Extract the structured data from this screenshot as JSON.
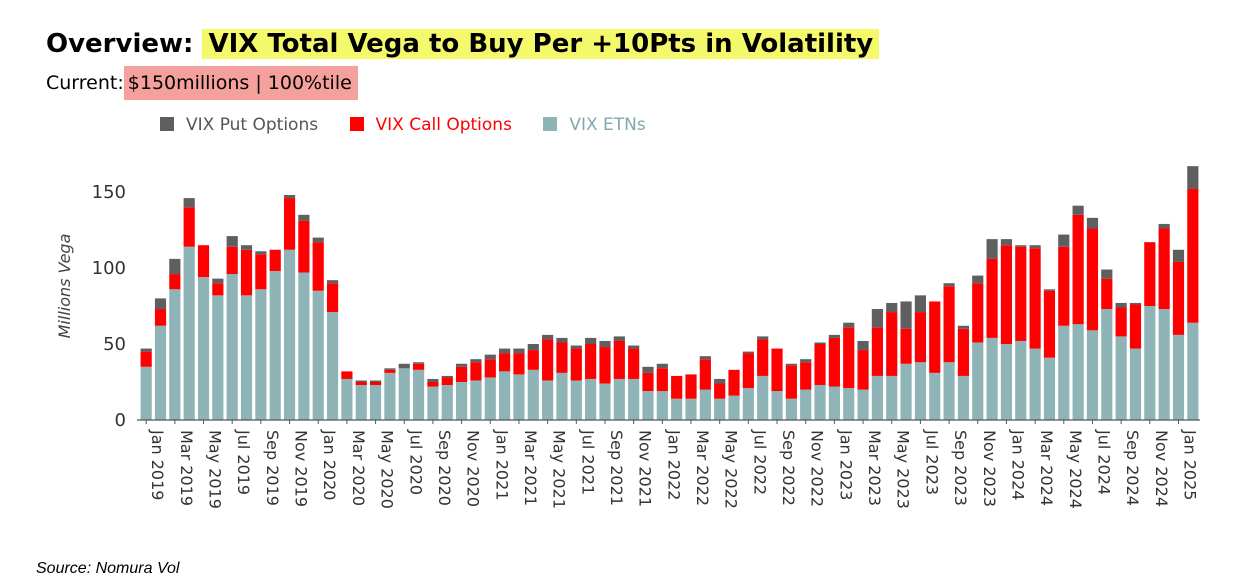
{
  "header": {
    "title_prefix": "Overview:",
    "title_highlight": "VIX Total Vega to Buy Per +10Pts in Volatility",
    "current_label": "Current:",
    "current_value": "$150millions | 100%tile"
  },
  "legend": [
    {
      "label": "VIX Put Options",
      "color": "#5f5f5f",
      "text_color": "#555555"
    },
    {
      "label": "VIX Call Options",
      "color": "#ff0000",
      "text_color": "#ff0000"
    },
    {
      "label": "VIX ETNs",
      "color": "#8fb4b8",
      "text_color": "#7fa7ad"
    }
  ],
  "source": "Source: Nomura Vol",
  "chart_data": {
    "type": "stacked-bar",
    "ylabel": "Millions Vega",
    "ylim": [
      0,
      170
    ],
    "yticks": [
      0,
      50,
      100,
      150
    ],
    "xtick_labels": [
      "Jan 2019",
      "Mar 2019",
      "May 2019",
      "Jul 2019",
      "Sep 2019",
      "Nov 2019",
      "Jan 2020",
      "Mar 2020",
      "May 2020",
      "Jul 2020",
      "Sep 2020",
      "Nov 2020",
      "Jan 2021",
      "Mar 2021",
      "May 2021",
      "Jul 2021",
      "Sep 2021",
      "Nov 2021",
      "Jan 2022",
      "Mar 2022",
      "May 2022",
      "Jul 2022",
      "Sep 2022",
      "Nov 2022",
      "Jan 2023",
      "Mar 2023",
      "May 2023",
      "Jul 2023",
      "Sep 2023",
      "Nov 2023",
      "Jan 2024",
      "Mar 2024",
      "May 2024",
      "Jul 2024",
      "Sep 2024",
      "Nov 2024",
      "Jan 2025"
    ],
    "series": [
      {
        "name": "VIX ETNs",
        "color": "#8fb4b8",
        "values": [
          35,
          62,
          86,
          114,
          94,
          82,
          96,
          82,
          86,
          98,
          112,
          97,
          85,
          71,
          27,
          23,
          23,
          31,
          34,
          33,
          22,
          23,
          25,
          26,
          28,
          32,
          30,
          33,
          26,
          31,
          26,
          27,
          24,
          27,
          27,
          19,
          19,
          14,
          14,
          20,
          14,
          16,
          21,
          29,
          19,
          14,
          20,
          23,
          22,
          21,
          20,
          29,
          29,
          37,
          38,
          31,
          38,
          29,
          51,
          54,
          50,
          52,
          47,
          41,
          62,
          63,
          59,
          73,
          55,
          47,
          75,
          73,
          56,
          64
        ]
      },
      {
        "name": "VIX Call Options",
        "color": "#ff0000",
        "values": [
          10,
          11,
          10,
          26,
          21,
          8,
          18,
          30,
          23,
          14,
          34,
          34,
          32,
          19,
          5,
          2,
          2,
          2,
          0,
          4,
          3,
          5,
          10,
          12,
          12,
          12,
          14,
          13,
          27,
          20,
          21,
          23,
          24,
          25,
          20,
          12,
          15,
          15,
          16,
          20,
          10,
          17,
          23,
          24,
          28,
          22,
          18,
          27,
          32,
          40,
          26,
          32,
          42,
          23,
          33,
          47,
          50,
          31,
          39,
          52,
          65,
          62,
          66,
          44,
          52,
          72,
          67,
          20,
          19,
          29,
          42,
          53,
          48,
          88
        ]
      },
      {
        "name": "VIX Put Options",
        "color": "#5f5f5f",
        "values": [
          2,
          7,
          10,
          6,
          0,
          3,
          7,
          3,
          2,
          0,
          2,
          4,
          3,
          2,
          0,
          1,
          1,
          1,
          3,
          1,
          2,
          1,
          2,
          2,
          3,
          3,
          3,
          4,
          3,
          3,
          2,
          4,
          4,
          3,
          2,
          4,
          3,
          0,
          0,
          2,
          3,
          0,
          1,
          2,
          0,
          1,
          2,
          1,
          2,
          3,
          6,
          12,
          6,
          18,
          11,
          0,
          2,
          2,
          5,
          13,
          4,
          1,
          2,
          1,
          8,
          6,
          7,
          6,
          3,
          1,
          0,
          3,
          8,
          15
        ]
      }
    ]
  }
}
